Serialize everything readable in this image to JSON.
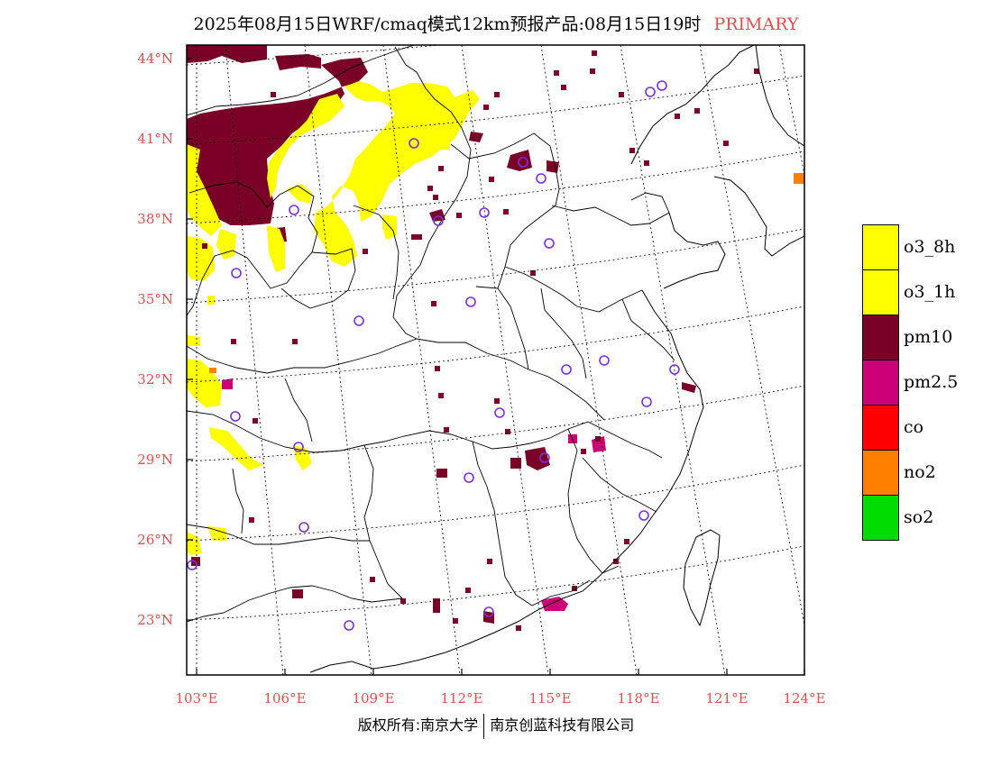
{
  "title": {
    "main": "2025年08月15日WRF/cmaq模式12km预报产品:08月15日19时",
    "tag": "PRIMARY"
  },
  "colors": {
    "o3_8h": "#ffff00",
    "o3_1h": "#ffff00",
    "pm10": "#7a0028",
    "pm25": "#cc0077",
    "co": "#ff0000",
    "no2": "#ff7f00",
    "so2": "#00dd00",
    "site_marker": "#7b2fe0",
    "axis_label": "#e05050"
  },
  "lat_labels": [
    "44°N",
    "41°N",
    "38°N",
    "35°N",
    "32°N",
    "29°N",
    "26°N",
    "23°N"
  ],
  "lon_labels": [
    "103°E",
    "106°E",
    "109°E",
    "112°E",
    "115°E",
    "118°E",
    "121°E",
    "124°E"
  ],
  "legend": [
    {
      "label": "o3_8h",
      "color": "#ffff00"
    },
    {
      "label": "o3_1h",
      "color": "#ffff00"
    },
    {
      "label": "pm10",
      "color": "#7a0028"
    },
    {
      "label": "pm2.5",
      "color": "#cc0077"
    },
    {
      "label": "co",
      "color": "#ff0000"
    },
    {
      "label": "no2",
      "color": "#ff7f00"
    },
    {
      "label": "so2",
      "color": "#00dd00"
    }
  ],
  "copyright": {
    "left": "版权所有:南京大学",
    "right": "南京创蓝科技有限公司"
  }
}
